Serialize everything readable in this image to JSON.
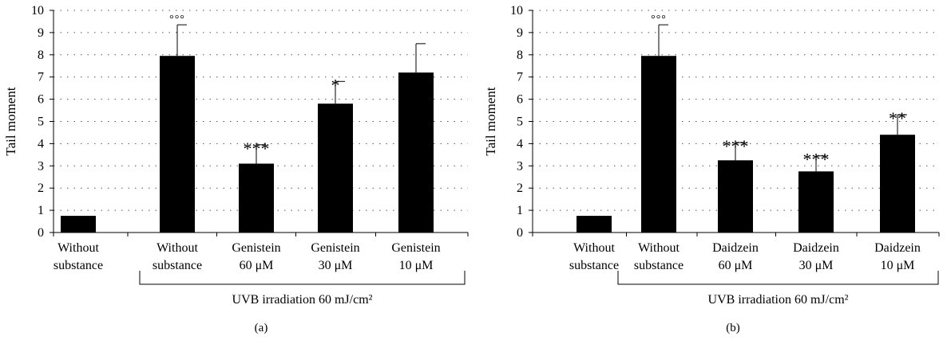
{
  "chart_data": [
    {
      "type": "bar",
      "panel_label": "(a)",
      "ylabel": "Tail moment",
      "ylim": [
        0,
        10
      ],
      "yticks": [
        "0",
        "1",
        "2",
        "3",
        "4",
        "5",
        "6",
        "7",
        "8",
        "9",
        "10"
      ],
      "grid": "dotted",
      "categories": [
        [
          "Without",
          "substance"
        ],
        [
          "Without",
          "substance"
        ],
        [
          "Genistein",
          "60 μM"
        ],
        [
          "Genistein",
          "30 μM"
        ],
        [
          "Genistein",
          "10 μM"
        ]
      ],
      "values": [
        0.75,
        7.95,
        3.1,
        5.8,
        7.2
      ],
      "errors": [
        0,
        1.4,
        0.85,
        1.0,
        1.3
      ],
      "significance": [
        "",
        "°°°",
        "***",
        "*",
        ""
      ],
      "group_label": "UVB irradiation  60 mJ/cm²",
      "bar_color": "#000000"
    },
    {
      "type": "bar",
      "panel_label": "(b)",
      "ylabel": "Tail moment",
      "ylim": [
        0,
        10
      ],
      "yticks": [
        "0",
        "1",
        "2",
        "3",
        "4",
        "5",
        "6",
        "7",
        "8",
        "9",
        "10"
      ],
      "grid": "dotted",
      "categories": [
        [
          "Without",
          "substance"
        ],
        [
          "Without",
          "substance"
        ],
        [
          "Daidzein",
          "60 μM"
        ],
        [
          "Daidzein",
          "30 μM"
        ],
        [
          "Daidzein",
          "10 μM"
        ]
      ],
      "values": [
        0.75,
        7.95,
        3.25,
        2.75,
        4.4
      ],
      "errors": [
        0,
        1.4,
        0.8,
        0.7,
        0.9
      ],
      "significance": [
        "",
        "°°°",
        "***",
        "***",
        "**"
      ],
      "group_label": "UVB irradiation  60 mJ/cm²",
      "bar_color": "#000000"
    }
  ]
}
